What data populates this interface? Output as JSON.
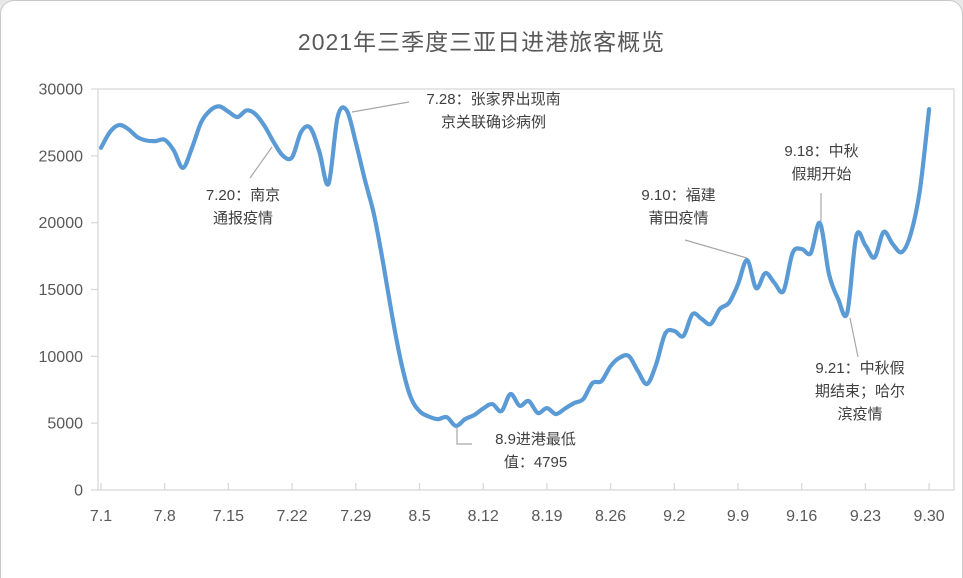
{
  "chart_data": {
    "type": "line",
    "title": "2021年三季度三亚日进港旅客概览",
    "xlabel": "",
    "ylabel": "",
    "ylim": [
      0,
      30000
    ],
    "y_tick_interval": 5000,
    "y_tick_labels": [
      "0",
      "5000",
      "10000",
      "15000",
      "20000",
      "25000",
      "30000"
    ],
    "x_tick_labels": [
      "7.1",
      "7.8",
      "7.15",
      "7.22",
      "7.29",
      "8.5",
      "8.12",
      "8.19",
      "8.26",
      "9.2",
      "9.9",
      "9.16",
      "9.23",
      "9.30"
    ],
    "grid": false,
    "legend": "none",
    "smooth": true,
    "line_color": "#5B9BD5",
    "x": [
      "7.1",
      "7.2",
      "7.3",
      "7.4",
      "7.5",
      "7.6",
      "7.7",
      "7.8",
      "7.9",
      "7.10",
      "7.11",
      "7.12",
      "7.13",
      "7.14",
      "7.15",
      "7.16",
      "7.17",
      "7.18",
      "7.19",
      "7.20",
      "7.21",
      "7.22",
      "7.23",
      "7.24",
      "7.25",
      "7.26",
      "7.27",
      "7.28",
      "7.29",
      "7.30",
      "7.31",
      "8.1",
      "8.2",
      "8.3",
      "8.4",
      "8.5",
      "8.6",
      "8.7",
      "8.8",
      "8.9",
      "8.10",
      "8.11",
      "8.12",
      "8.13",
      "8.14",
      "8.15",
      "8.16",
      "8.17",
      "8.18",
      "8.19",
      "8.20",
      "8.21",
      "8.22",
      "8.23",
      "8.24",
      "8.25",
      "8.26",
      "8.27",
      "8.28",
      "8.29",
      "8.30",
      "8.31",
      "9.1",
      "9.2",
      "9.3",
      "9.4",
      "9.5",
      "9.6",
      "9.7",
      "9.8",
      "9.9",
      "9.10",
      "9.11",
      "9.12",
      "9.13",
      "9.14",
      "9.15",
      "9.16",
      "9.17",
      "9.18",
      "9.19",
      "9.20",
      "9.21",
      "9.22",
      "9.23",
      "9.24",
      "9.25",
      "9.26",
      "9.27",
      "9.28",
      "9.29",
      "9.30"
    ],
    "values": [
      25600,
      26800,
      27300,
      27000,
      26400,
      26150,
      26100,
      26200,
      25400,
      24100,
      25600,
      27500,
      28400,
      28700,
      28300,
      27900,
      28400,
      28100,
      27200,
      26000,
      25000,
      24900,
      26800,
      27100,
      25300,
      22900,
      27900,
      28400,
      26000,
      23200,
      20600,
      17000,
      13000,
      9500,
      7000,
      5900,
      5500,
      5300,
      5450,
      4795,
      5300,
      5600,
      6100,
      6430,
      5900,
      7180,
      6300,
      6660,
      5760,
      6130,
      5680,
      6100,
      6510,
      6810,
      8000,
      8150,
      9270,
      9900,
      10020,
      8900,
      7930,
      9400,
      11700,
      11900,
      11520,
      13160,
      12800,
      12420,
      13540,
      14000,
      15400,
      17200,
      15100,
      16230,
      15500,
      14890,
      17730,
      18030,
      17730,
      19970,
      16150,
      14300,
      13250,
      19000,
      18300,
      17400,
      19300,
      18400,
      17800,
      19200,
      22500,
      28500
    ],
    "annotations": [
      {
        "text": "7.20：南京通报疫情",
        "lines": [
          "7.20：南京",
          "通报疫情"
        ],
        "date": "7.20"
      },
      {
        "text": "7.28：张家界出现南京关联确诊病例",
        "lines": [
          "7.28：张家界出现南",
          "京关联确诊病例"
        ],
        "date": "7.28"
      },
      {
        "text": "8.9进港最低值：4795",
        "lines": [
          "8.9进港最低",
          "值：4795"
        ],
        "date": "8.9",
        "value": 4795
      },
      {
        "text": "9.10：福建莆田疫情",
        "lines": [
          "9.10：福建",
          "莆田疫情"
        ],
        "date": "9.10"
      },
      {
        "text": "9.18：中秋假期开始",
        "lines": [
          "9.18：中秋",
          "假期开始"
        ],
        "date": "9.18"
      },
      {
        "text": "9.21：中秋假期结束；哈尔滨疫情",
        "lines": [
          "9.21：中秋假",
          "期结束；哈尔",
          "滨疫情"
        ],
        "date": "9.21"
      }
    ]
  },
  "colors": {
    "line": "#5B9BD5",
    "axis": "#D9D9D9",
    "tick_text": "#595959",
    "title_text": "#595959",
    "annotation_text": "#404040",
    "leader_line": "#A6A6A6"
  }
}
